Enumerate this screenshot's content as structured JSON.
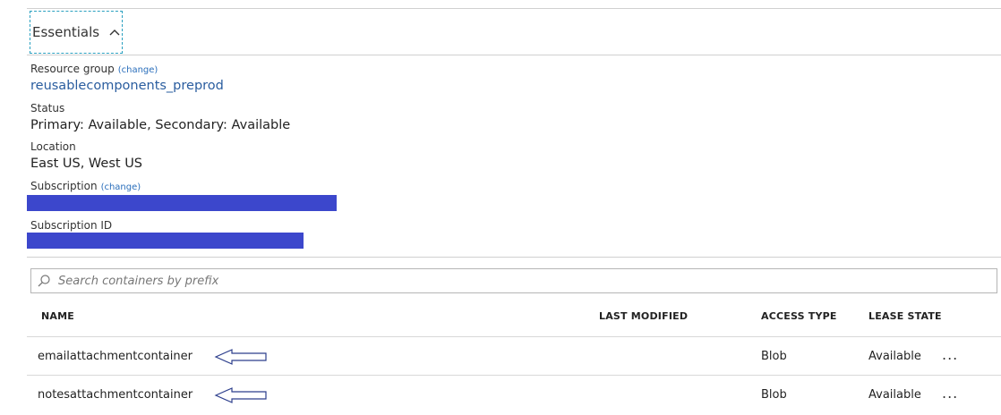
{
  "essentials": {
    "label": "Essentials",
    "chevron_icon": "chevron-up-icon"
  },
  "properties": {
    "resource_group": {
      "label": "Resource group",
      "change": "(change)",
      "value": "reusablecomponents_preprod"
    },
    "status": {
      "label": "Status",
      "value": "Primary: Available, Secondary: Available"
    },
    "location": {
      "label": "Location",
      "value": "East US, West US"
    },
    "subscription": {
      "label": "Subscription",
      "change": "(change)"
    },
    "subscription_id": {
      "label": "Subscription ID"
    }
  },
  "redaction_color": "#3c47cc",
  "search": {
    "placeholder": "Search containers by prefix",
    "icon": "search-icon"
  },
  "table": {
    "columns": [
      "NAME",
      "LAST MODIFIED",
      "ACCESS TYPE",
      "LEASE STATE"
    ],
    "rows": [
      {
        "name": "emailattachmentcontainer",
        "last_modified": "",
        "access_type": "Blob",
        "lease_state": "Available",
        "more": "..."
      },
      {
        "name": "notesattachmentcontainer",
        "last_modified": "",
        "access_type": "Blob",
        "lease_state": "Available",
        "more": "..."
      }
    ]
  }
}
